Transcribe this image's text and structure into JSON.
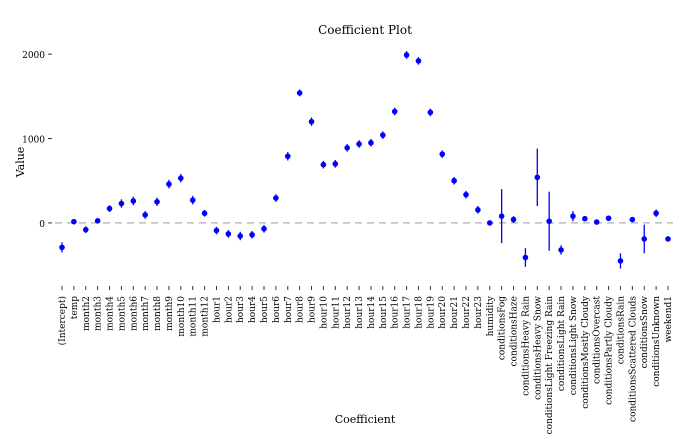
{
  "chart_data": {
    "type": "scatter",
    "title": "Coefficient Plot",
    "xlabel": "Coefficient",
    "ylabel": "Value",
    "ylim": [
      -700,
      2120
    ],
    "yticks": [
      0,
      1000,
      2000
    ],
    "grid": false,
    "reference_line": {
      "y": 0,
      "style": "dashed"
    },
    "point_color": "#0000FF",
    "reference_line_color": "#BEBEBE",
    "categories": [
      "(Intercept)",
      "temp",
      "month2",
      "month3",
      "month4",
      "month5",
      "month6",
      "month7",
      "month8",
      "month9",
      "month10",
      "month11",
      "month12",
      "hour1",
      "hour2",
      "hour3",
      "hour4",
      "hour5",
      "hour6",
      "hour7",
      "hour8",
      "hour9",
      "hour10",
      "hour11",
      "hour12",
      "hour13",
      "hour14",
      "hour15",
      "hour16",
      "hour17",
      "hour18",
      "hour19",
      "hour20",
      "hour21",
      "hour22",
      "hour23",
      "humidity",
      "conditionsFog",
      "conditionsHaze",
      "conditionsHeavy Rain",
      "conditionsHeavy Snow",
      "conditionsLight Freezing Rain",
      "conditionsLight Rain",
      "conditionsLight Snow",
      "conditionsMostly Cloudy",
      "conditionsOvercast",
      "conditionsPartly Cloudy",
      "conditionsRain",
      "conditionsScattered Clouds",
      "conditionsSnow",
      "conditionsUnknown",
      "weekend1"
    ],
    "values": [
      -290,
      15,
      -80,
      25,
      170,
      230,
      260,
      95,
      250,
      460,
      530,
      270,
      115,
      -90,
      -130,
      -155,
      -140,
      -70,
      295,
      790,
      1540,
      1200,
      690,
      700,
      890,
      935,
      950,
      1040,
      1320,
      1990,
      1920,
      1310,
      815,
      500,
      335,
      155,
      0,
      80,
      40,
      -410,
      540,
      20,
      -320,
      80,
      50,
      10,
      55,
      -450,
      40,
      -190,
      115,
      -190
    ],
    "lower": [
      -350,
      -10,
      -120,
      -5,
      130,
      180,
      210,
      50,
      200,
      410,
      480,
      220,
      75,
      -135,
      -175,
      -205,
      -185,
      -115,
      250,
      740,
      1500,
      1150,
      645,
      655,
      845,
      890,
      905,
      995,
      1275,
      1945,
      1875,
      1265,
      770,
      455,
      290,
      110,
      -25,
      -240,
      0,
      -520,
      200,
      -330,
      -375,
      20,
      25,
      -15,
      25,
      -540,
      15,
      -360,
      70,
      -215
    ],
    "upper": [
      -230,
      40,
      -40,
      55,
      210,
      280,
      310,
      140,
      300,
      510,
      580,
      320,
      155,
      -45,
      -85,
      -105,
      -95,
      -25,
      340,
      840,
      1580,
      1250,
      735,
      745,
      935,
      980,
      995,
      1085,
      1365,
      2035,
      1965,
      1355,
      860,
      545,
      380,
      200,
      25,
      400,
      80,
      -300,
      880,
      370,
      -265,
      140,
      75,
      35,
      85,
      -360,
      65,
      -20,
      160,
      -165
    ]
  }
}
